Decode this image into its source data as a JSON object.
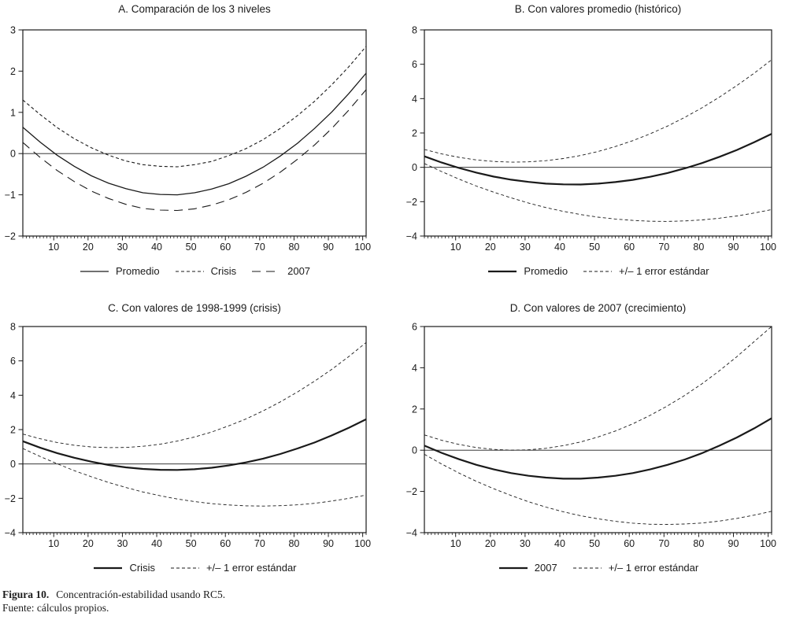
{
  "figure": {
    "caption_label": "Figura 10.",
    "caption_text": "Concentración-estabilidad usando RC5.",
    "source": "Fuente: cálculos propios."
  },
  "line_color": "#1a1a1a",
  "chart_data": [
    {
      "panel": "A",
      "type": "line",
      "title": "A. Comparación de los 3 niveles",
      "xlim": [
        1,
        101
      ],
      "ylim": [
        -2,
        3
      ],
      "x_ticks": [
        10,
        20,
        30,
        40,
        50,
        60,
        70,
        80,
        90,
        100
      ],
      "y_ticks": [
        3,
        2,
        1,
        0,
        -1,
        -2
      ],
      "zero_line": true,
      "grid": false,
      "legend_position": "bottom",
      "x": [
        1,
        6,
        11,
        16,
        21,
        26,
        31,
        36,
        41,
        46,
        51,
        56,
        61,
        66,
        71,
        76,
        81,
        86,
        91,
        96,
        101
      ],
      "series": [
        {
          "name": "Promedio",
          "line": "solid",
          "stroke_width": 1.3,
          "values": [
            0.64,
            0.28,
            -0.04,
            -0.31,
            -0.54,
            -0.72,
            -0.85,
            -0.95,
            -0.99,
            -1.0,
            -0.95,
            -0.86,
            -0.73,
            -0.55,
            -0.33,
            -0.06,
            0.25,
            0.61,
            1.01,
            1.46,
            1.95
          ]
        },
        {
          "name": "Crisis",
          "line": "dash",
          "stroke_width": 1.1,
          "values": [
            1.3,
            0.95,
            0.63,
            0.36,
            0.14,
            -0.04,
            -0.18,
            -0.27,
            -0.31,
            -0.32,
            -0.27,
            -0.19,
            -0.05,
            0.12,
            0.34,
            0.61,
            0.92,
            1.27,
            1.67,
            2.11,
            2.6
          ]
        },
        {
          "name": "2007",
          "line": "longdash",
          "stroke_width": 1.1,
          "values": [
            0.27,
            -0.09,
            -0.41,
            -0.68,
            -0.91,
            -1.09,
            -1.23,
            -1.33,
            -1.37,
            -1.38,
            -1.34,
            -1.25,
            -1.12,
            -0.94,
            -0.72,
            -0.45,
            -0.14,
            0.21,
            0.61,
            1.06,
            1.55
          ]
        }
      ],
      "legend": [
        {
          "label": "Promedio",
          "line": "solid",
          "stroke_width": 1.3
        },
        {
          "label": "Crisis",
          "line": "dash",
          "stroke_width": 1.1
        },
        {
          "label": "2007",
          "line": "longdash",
          "stroke_width": 1.1
        }
      ]
    },
    {
      "panel": "B",
      "type": "line",
      "title": "B. Con valores promedio (histórico)",
      "xlim": [
        1,
        101
      ],
      "ylim": [
        -4,
        8
      ],
      "x_ticks": [
        10,
        20,
        30,
        40,
        50,
        60,
        70,
        80,
        90,
        100
      ],
      "y_ticks": [
        8,
        6,
        4,
        2,
        0,
        -2,
        -4
      ],
      "zero_line": true,
      "grid": false,
      "legend_position": "bottom",
      "x": [
        1,
        6,
        11,
        16,
        21,
        26,
        31,
        36,
        41,
        46,
        51,
        56,
        61,
        66,
        71,
        76,
        81,
        86,
        91,
        96,
        101
      ],
      "series": [
        {
          "name": "Promedio",
          "line": "solid",
          "stroke_width": 2.2,
          "values": [
            0.64,
            0.28,
            -0.04,
            -0.31,
            -0.54,
            -0.72,
            -0.85,
            -0.95,
            -0.99,
            -1.0,
            -0.95,
            -0.86,
            -0.73,
            -0.55,
            -0.33,
            -0.06,
            0.25,
            0.61,
            1.01,
            1.46,
            1.95
          ]
        },
        {
          "name": "+1 error estándar",
          "line": "dash",
          "stroke_width": 0.9,
          "values": [
            1.04,
            0.78,
            0.58,
            0.43,
            0.34,
            0.3,
            0.32,
            0.39,
            0.51,
            0.69,
            0.92,
            1.21,
            1.55,
            1.95,
            2.4,
            2.91,
            3.47,
            4.09,
            4.76,
            5.48,
            6.26
          ]
        },
        {
          "name": "-1 error estándar",
          "line": "dash",
          "stroke_width": 0.9,
          "values": [
            0.22,
            -0.25,
            -0.69,
            -1.09,
            -1.45,
            -1.78,
            -2.08,
            -2.34,
            -2.56,
            -2.75,
            -2.9,
            -3.01,
            -3.09,
            -3.14,
            -3.15,
            -3.12,
            -3.06,
            -2.96,
            -2.83,
            -2.66,
            -2.46
          ]
        }
      ],
      "legend": [
        {
          "label": "Promedio",
          "line": "solid",
          "stroke_width": 2.2
        },
        {
          "label": "+/– 1 error estándar",
          "line": "dash",
          "stroke_width": 1
        }
      ]
    },
    {
      "panel": "C",
      "type": "line",
      "title": "C. Con valores de 1998-1999 (crisis)",
      "xlim": [
        1,
        101
      ],
      "ylim": [
        -4,
        8
      ],
      "x_ticks": [
        10,
        20,
        30,
        40,
        50,
        60,
        70,
        80,
        90,
        100
      ],
      "y_ticks": [
        8,
        6,
        4,
        2,
        0,
        -2,
        -4
      ],
      "zero_line": true,
      "grid": false,
      "legend_position": "bottom",
      "x": [
        1,
        6,
        11,
        16,
        21,
        26,
        31,
        36,
        41,
        46,
        51,
        56,
        61,
        66,
        71,
        76,
        81,
        86,
        91,
        96,
        101
      ],
      "series": [
        {
          "name": "Crisis",
          "line": "solid",
          "stroke_width": 2.2,
          "values": [
            1.32,
            0.95,
            0.63,
            0.36,
            0.13,
            -0.06,
            -0.2,
            -0.29,
            -0.34,
            -0.35,
            -0.31,
            -0.22,
            -0.09,
            0.09,
            0.31,
            0.58,
            0.9,
            1.25,
            1.66,
            2.11,
            2.6
          ]
        },
        {
          "name": "+1 error estándar",
          "line": "dash",
          "stroke_width": 0.9,
          "values": [
            1.74,
            1.47,
            1.25,
            1.09,
            0.99,
            0.95,
            0.96,
            1.03,
            1.15,
            1.33,
            1.57,
            1.86,
            2.22,
            2.62,
            3.09,
            3.61,
            4.19,
            4.82,
            5.51,
            6.26,
            7.07
          ]
        },
        {
          "name": "-1 error estándar",
          "line": "dash",
          "stroke_width": 0.9,
          "values": [
            0.9,
            0.44,
            0.01,
            -0.39,
            -0.75,
            -1.08,
            -1.37,
            -1.63,
            -1.85,
            -2.04,
            -2.19,
            -2.31,
            -2.39,
            -2.44,
            -2.45,
            -2.43,
            -2.38,
            -2.29,
            -2.16,
            -2.0,
            -1.81
          ]
        }
      ],
      "legend": [
        {
          "label": "Crisis",
          "line": "solid",
          "stroke_width": 2.2
        },
        {
          "label": "+/– 1 error estándar",
          "line": "dash",
          "stroke_width": 1
        }
      ]
    },
    {
      "panel": "D",
      "type": "line",
      "title": "D. Con valores de 2007 (crecimiento)",
      "xlim": [
        1,
        101
      ],
      "ylim": [
        -4,
        6
      ],
      "x_ticks": [
        10,
        20,
        30,
        40,
        50,
        60,
        70,
        80,
        90,
        100
      ],
      "y_ticks": [
        6,
        4,
        2,
        0,
        -2,
        -4
      ],
      "zero_line": true,
      "grid": false,
      "legend_position": "bottom",
      "x": [
        1,
        6,
        11,
        16,
        21,
        26,
        31,
        36,
        41,
        46,
        51,
        56,
        61,
        66,
        71,
        76,
        81,
        86,
        91,
        96,
        101
      ],
      "series": [
        {
          "name": "2007",
          "line": "solid",
          "stroke_width": 2.2,
          "values": [
            0.22,
            -0.13,
            -0.44,
            -0.71,
            -0.93,
            -1.11,
            -1.24,
            -1.33,
            -1.38,
            -1.38,
            -1.33,
            -1.24,
            -1.11,
            -0.93,
            -0.71,
            -0.45,
            -0.14,
            0.22,
            0.62,
            1.06,
            1.55
          ]
        },
        {
          "name": "+1 error estándar",
          "line": "dash",
          "stroke_width": 0.9,
          "values": [
            0.74,
            0.48,
            0.28,
            0.13,
            0.04,
            0.0,
            0.02,
            0.09,
            0.22,
            0.4,
            0.64,
            0.93,
            1.28,
            1.69,
            2.15,
            2.66,
            3.23,
            3.86,
            4.54,
            5.27,
            6.06
          ]
        },
        {
          "name": "-1 error estándar",
          "line": "dash",
          "stroke_width": 0.9,
          "values": [
            -0.2,
            -0.67,
            -1.11,
            -1.51,
            -1.87,
            -2.2,
            -2.5,
            -2.76,
            -2.99,
            -3.18,
            -3.33,
            -3.45,
            -3.54,
            -3.59,
            -3.6,
            -3.58,
            -3.53,
            -3.44,
            -3.31,
            -3.15,
            -2.96
          ]
        }
      ],
      "legend": [
        {
          "label": "2007",
          "line": "solid",
          "stroke_width": 2.2
        },
        {
          "label": "+/– 1 error estándar",
          "line": "dash",
          "stroke_width": 1
        }
      ]
    }
  ]
}
